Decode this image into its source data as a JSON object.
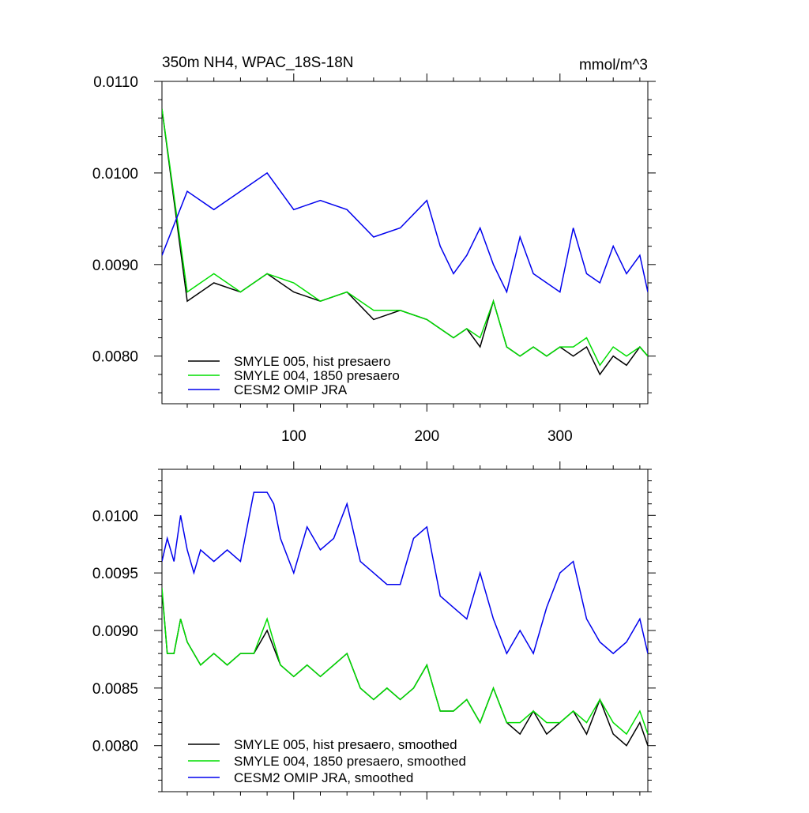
{
  "chart_data": [
    {
      "type": "line",
      "title": "350m NH4, WPAC_18S-18N",
      "units": "mmol/m^3",
      "xlim": [
        1,
        366
      ],
      "ylim": [
        0.00748,
        0.011
      ],
      "ytick_labels": [
        "0.0080",
        "0.0090",
        "0.0100",
        "0.0110"
      ],
      "ytick_values": [
        0.008,
        0.009,
        0.01,
        0.011
      ],
      "xtick_labels": [
        "100",
        "200",
        "300"
      ],
      "xtick_values": [
        100,
        200,
        300
      ],
      "legend_position": "bottom-left",
      "series": [
        {
          "name": "SMYLE 005, hist presaero",
          "color": "#000000",
          "x": [
            1,
            20,
            40,
            60,
            80,
            100,
            120,
            140,
            160,
            180,
            200,
            210,
            220,
            230,
            240,
            250,
            260,
            270,
            280,
            290,
            300,
            310,
            320,
            330,
            340,
            350,
            360,
            366
          ],
          "values": [
            0.0107,
            0.0086,
            0.0088,
            0.0087,
            0.0089,
            0.0087,
            0.0086,
            0.0087,
            0.0084,
            0.0085,
            0.0084,
            0.0083,
            0.0082,
            0.0083,
            0.0081,
            0.0086,
            0.0081,
            0.008,
            0.0081,
            0.008,
            0.0081,
            0.008,
            0.0081,
            0.0078,
            0.008,
            0.0079,
            0.0081,
            0.008
          ]
        },
        {
          "name": "SMYLE 004, 1850 presaero",
          "color": "#00dd00",
          "x": [
            1,
            20,
            40,
            60,
            80,
            100,
            120,
            140,
            160,
            180,
            200,
            210,
            220,
            230,
            240,
            250,
            260,
            270,
            280,
            290,
            300,
            310,
            320,
            330,
            340,
            350,
            360,
            366
          ],
          "values": [
            0.0107,
            0.0087,
            0.0089,
            0.0087,
            0.0089,
            0.0088,
            0.0086,
            0.0087,
            0.0085,
            0.0085,
            0.0084,
            0.0083,
            0.0082,
            0.0083,
            0.0082,
            0.0086,
            0.0081,
            0.008,
            0.0081,
            0.008,
            0.0081,
            0.0081,
            0.0082,
            0.0079,
            0.0081,
            0.008,
            0.0081,
            0.008
          ]
        },
        {
          "name": "CESM2 OMIP JRA",
          "color": "#0000ee",
          "x": [
            1,
            20,
            40,
            60,
            80,
            100,
            120,
            140,
            160,
            180,
            200,
            210,
            220,
            230,
            240,
            250,
            260,
            270,
            280,
            290,
            300,
            310,
            320,
            330,
            340,
            350,
            360,
            366
          ],
          "values": [
            0.0091,
            0.0098,
            0.0096,
            0.0098,
            0.01,
            0.0096,
            0.0097,
            0.0096,
            0.0093,
            0.0094,
            0.0097,
            0.0092,
            0.0089,
            0.0091,
            0.0094,
            0.009,
            0.0087,
            0.0093,
            0.0089,
            0.0088,
            0.0087,
            0.0094,
            0.0089,
            0.0088,
            0.0092,
            0.0089,
            0.0091,
            0.0087
          ]
        }
      ]
    },
    {
      "type": "line",
      "xlim": [
        1,
        366
      ],
      "ylim": [
        0.0076,
        0.0104
      ],
      "ytick_labels": [
        "0.0080",
        "0.0085",
        "0.0090",
        "0.0095",
        "0.0100"
      ],
      "ytick_values": [
        0.008,
        0.0085,
        0.009,
        0.0095,
        0.01
      ],
      "legend_position": "bottom-left",
      "series": [
        {
          "name": "SMYLE 005, hist presaero, smoothed",
          "color": "#000000",
          "x": [
            1,
            5,
            10,
            15,
            20,
            25,
            30,
            40,
            50,
            60,
            70,
            80,
            90,
            100,
            110,
            120,
            130,
            140,
            150,
            160,
            170,
            180,
            190,
            200,
            205,
            210,
            220,
            230,
            240,
            250,
            260,
            270,
            280,
            290,
            300,
            310,
            320,
            330,
            340,
            350,
            360,
            366
          ],
          "values": [
            0.00935,
            0.0088,
            0.0088,
            0.0091,
            0.0089,
            0.0088,
            0.0087,
            0.0088,
            0.0087,
            0.0088,
            0.0088,
            0.009,
            0.0087,
            0.0086,
            0.0087,
            0.0086,
            0.0087,
            0.0088,
            0.0085,
            0.0084,
            0.0085,
            0.0084,
            0.0085,
            0.0087,
            0.0085,
            0.0083,
            0.0083,
            0.0084,
            0.0082,
            0.0085,
            0.0082,
            0.0081,
            0.0083,
            0.0081,
            0.0082,
            0.0083,
            0.0081,
            0.0084,
            0.0081,
            0.008,
            0.0082,
            0.008
          ]
        },
        {
          "name": "SMYLE 004, 1850 presaero, smoothed",
          "color": "#00dd00",
          "x": [
            1,
            5,
            10,
            15,
            20,
            25,
            30,
            40,
            50,
            60,
            70,
            80,
            90,
            100,
            110,
            120,
            130,
            140,
            150,
            160,
            170,
            180,
            190,
            200,
            205,
            210,
            220,
            230,
            240,
            250,
            260,
            270,
            280,
            290,
            300,
            310,
            320,
            330,
            340,
            350,
            360,
            366
          ],
          "values": [
            0.00937,
            0.0088,
            0.0088,
            0.0091,
            0.0089,
            0.0088,
            0.0087,
            0.0088,
            0.0087,
            0.0088,
            0.0088,
            0.0091,
            0.0087,
            0.0086,
            0.0087,
            0.0086,
            0.0087,
            0.0088,
            0.0085,
            0.0084,
            0.0085,
            0.0084,
            0.0085,
            0.0087,
            0.0085,
            0.0083,
            0.0083,
            0.0084,
            0.0082,
            0.0085,
            0.0082,
            0.0082,
            0.0083,
            0.0082,
            0.0082,
            0.0083,
            0.0082,
            0.0084,
            0.0082,
            0.0081,
            0.0083,
            0.0081
          ]
        },
        {
          "name": "CESM2 OMIP JRA, smoothed",
          "color": "#0000ee",
          "x": [
            1,
            5,
            10,
            15,
            20,
            25,
            30,
            40,
            50,
            60,
            70,
            80,
            85,
            90,
            100,
            110,
            120,
            130,
            140,
            150,
            160,
            170,
            180,
            190,
            200,
            205,
            210,
            220,
            230,
            240,
            250,
            260,
            270,
            280,
            290,
            300,
            310,
            320,
            330,
            340,
            350,
            360,
            366
          ],
          "values": [
            0.0096,
            0.0098,
            0.0096,
            0.01,
            0.0097,
            0.0095,
            0.0097,
            0.0096,
            0.0097,
            0.0096,
            0.0102,
            0.0102,
            0.0101,
            0.0098,
            0.0095,
            0.0099,
            0.0097,
            0.0098,
            0.0101,
            0.0096,
            0.0095,
            0.0094,
            0.0094,
            0.0098,
            0.0099,
            0.0096,
            0.0093,
            0.0092,
            0.0091,
            0.0095,
            0.0091,
            0.0088,
            0.009,
            0.0088,
            0.0092,
            0.0095,
            0.0096,
            0.0091,
            0.0089,
            0.0088,
            0.0089,
            0.0091,
            0.0088
          ]
        }
      ]
    }
  ]
}
